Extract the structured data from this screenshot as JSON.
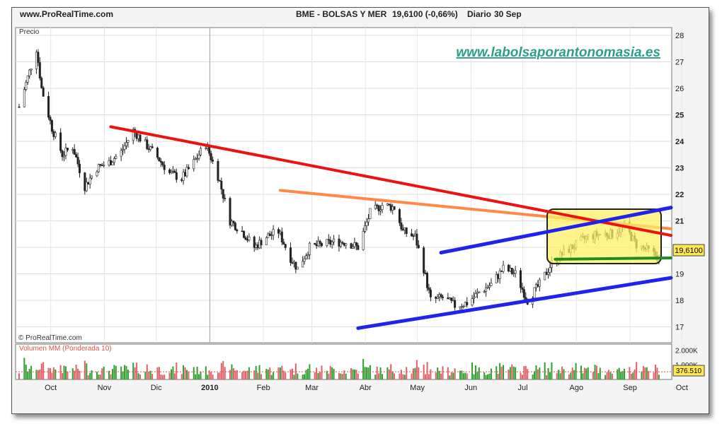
{
  "header": {
    "source": "www.ProRealTime.com",
    "instrument": "BME - BOLSAS Y MER",
    "last": "19,6100 (-0,66%)",
    "period": "Diario",
    "date": "30 Sep"
  },
  "watermark": "www.labolsaporantonomasia.es",
  "credit": "© ProRealTime.com",
  "colors": {
    "candle_up": "#2ea02e",
    "candle_down": "#e0606a",
    "resistance": "#ee1111",
    "secondary_resistance": "#ff8844",
    "channel": "#2222ee",
    "support": "#1f8c1f",
    "highlight": "#fff066",
    "last_badge": "#ffe850"
  },
  "chart_data": [
    {
      "type": "candlestick",
      "ylabel": "Precio",
      "ylim": [
        17,
        28
      ],
      "y_ticks": [
        "17",
        "18",
        "19",
        "20",
        "21",
        "22",
        "23",
        "24",
        "25",
        "26",
        "27",
        "28"
      ],
      "x_ticks": [
        "Oct",
        "Nov",
        "Dic",
        "2010",
        "Feb",
        "Mar",
        "Abr",
        "May",
        "Jun",
        "Jul",
        "Ago",
        "Sep",
        "Oct"
      ],
      "last_label": "19,6100",
      "close_path": [
        [
          "Sep 25",
          25.3
        ],
        [
          "Sep 29",
          26.2
        ],
        [
          "Oct 5",
          27.5
        ],
        [
          "Oct 8",
          26.0
        ],
        [
          "Oct 14",
          24.5
        ],
        [
          "Oct 20",
          23.5
        ],
        [
          "Oct 26",
          23.8
        ],
        [
          "Nov 2",
          22.3
        ],
        [
          "Nov 9",
          23.0
        ],
        [
          "Nov 16",
          23.2
        ],
        [
          "Nov 23",
          23.6
        ],
        [
          "Nov 30",
          24.4
        ],
        [
          "Dec 7",
          23.9
        ],
        [
          "Dec 14",
          23.4
        ],
        [
          "Dec 21",
          22.8
        ],
        [
          "Dec 28",
          22.6
        ],
        [
          "Jan 4",
          23.2
        ],
        [
          "Jan 11",
          23.9
        ],
        [
          "Jan 18",
          22.7
        ],
        [
          "Jan 25",
          21.0
        ],
        [
          "Feb 1",
          20.6
        ],
        [
          "Feb 8",
          20.0
        ],
        [
          "Feb 15",
          20.4
        ],
        [
          "Feb 22",
          20.6
        ],
        [
          "Mar 1",
          19.6
        ],
        [
          "Mar 5",
          19.2
        ],
        [
          "Mar 12",
          20.0
        ],
        [
          "Mar 19",
          20.1
        ],
        [
          "Mar 26",
          20.2
        ],
        [
          "Apr 2",
          20.2
        ],
        [
          "Apr 9",
          20.0
        ],
        [
          "Apr 16",
          21.3
        ],
        [
          "Apr 23",
          21.6
        ],
        [
          "Apr 30",
          21.5
        ],
        [
          "May 5",
          20.6
        ],
        [
          "May 12",
          20.4
        ],
        [
          "May 17",
          19.2
        ],
        [
          "May 21",
          18.0
        ],
        [
          "May 28",
          18.1
        ],
        [
          "Jun 4",
          17.8
        ],
        [
          "Jun 11",
          17.9
        ],
        [
          "Jun 18",
          18.3
        ],
        [
          "Jun 25",
          18.6
        ],
        [
          "Jul 2",
          19.2
        ],
        [
          "Jul 9",
          19.0
        ],
        [
          "Jul 16",
          18.0
        ],
        [
          "Jul 23",
          18.6
        ],
        [
          "Jul 30",
          19.4
        ],
        [
          "Aug 6",
          19.8
        ],
        [
          "Aug 13",
          20.1
        ],
        [
          "Aug 20",
          20.4
        ],
        [
          "Aug 27",
          20.5
        ],
        [
          "Sep 3",
          20.5
        ],
        [
          "Sep 10",
          20.8
        ],
        [
          "Sep 17",
          20.1
        ],
        [
          "Sep 23",
          19.9
        ],
        [
          "Sep 30",
          19.61
        ]
      ],
      "trendlines": [
        {
          "name": "resistance",
          "from": [
            "Nov 17",
            24.55
          ],
          "to": [
            "Oct 7",
            20.45
          ]
        },
        {
          "name": "secondary_resistance",
          "from": [
            "Feb 23",
            22.15
          ],
          "to": [
            "Oct 7",
            20.7
          ]
        },
        {
          "name": "channel_upper",
          "from": [
            "May 27",
            19.8
          ],
          "to": [
            "Oct 7",
            21.5
          ]
        },
        {
          "name": "channel_lower",
          "from": [
            "Apr 9",
            16.95
          ],
          "to": [
            "Oct 7",
            18.85
          ]
        },
        {
          "name": "support",
          "from": [
            "Aug 1",
            19.55
          ],
          "to": [
            "Oct 7",
            19.6
          ]
        }
      ]
    },
    {
      "type": "bar",
      "title": "Volumen MM (Ponderada 10)",
      "ylim": [
        0,
        2400000
      ],
      "y_ticks": [
        "2.000K",
        "1.000K"
      ],
      "last_label": "376.510",
      "moving_average": 520000,
      "recent": [
        [
          "Sep 30",
          376510
        ]
      ]
    }
  ]
}
